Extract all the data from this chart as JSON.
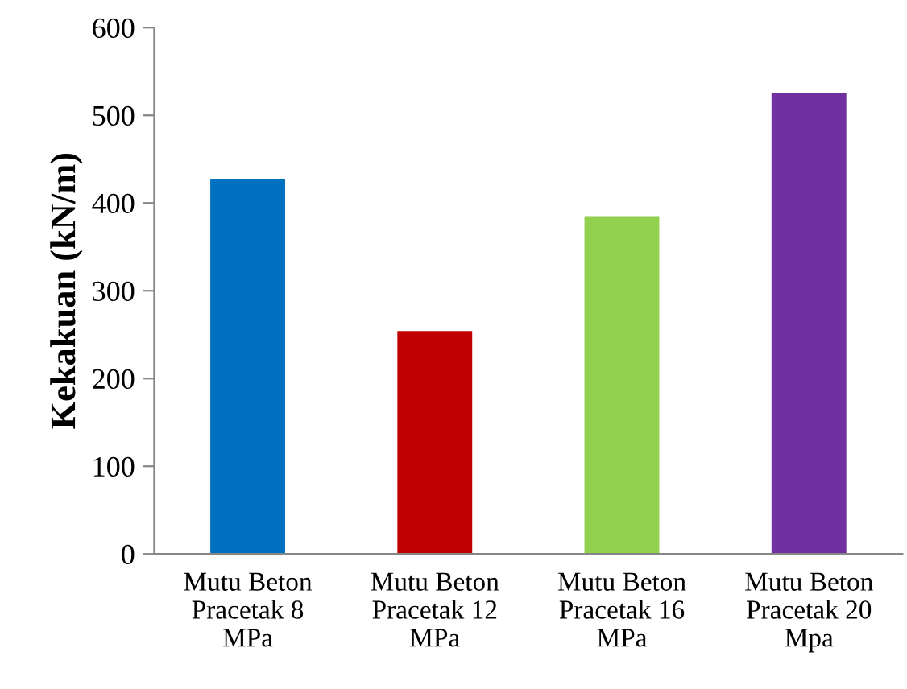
{
  "chart_data": {
    "type": "bar",
    "ylabel": "Kekakuan (kN/m)",
    "categories": [
      "Mutu Beton\nPracetak 8\nMPa",
      "Mutu Beton\nPracetak 12\nMPa",
      "Mutu Beton\nPracetak 16\nMPa",
      "Mutu Beton\nPracetak 20\nMpa"
    ],
    "values": [
      427,
      254,
      385,
      526
    ],
    "colors": [
      "#0070c0",
      "#c00000",
      "#92d050",
      "#7030a0"
    ],
    "ylim": [
      0,
      600
    ],
    "yticks": [
      0,
      100,
      200,
      300,
      400,
      500,
      600
    ],
    "grid": false
  }
}
